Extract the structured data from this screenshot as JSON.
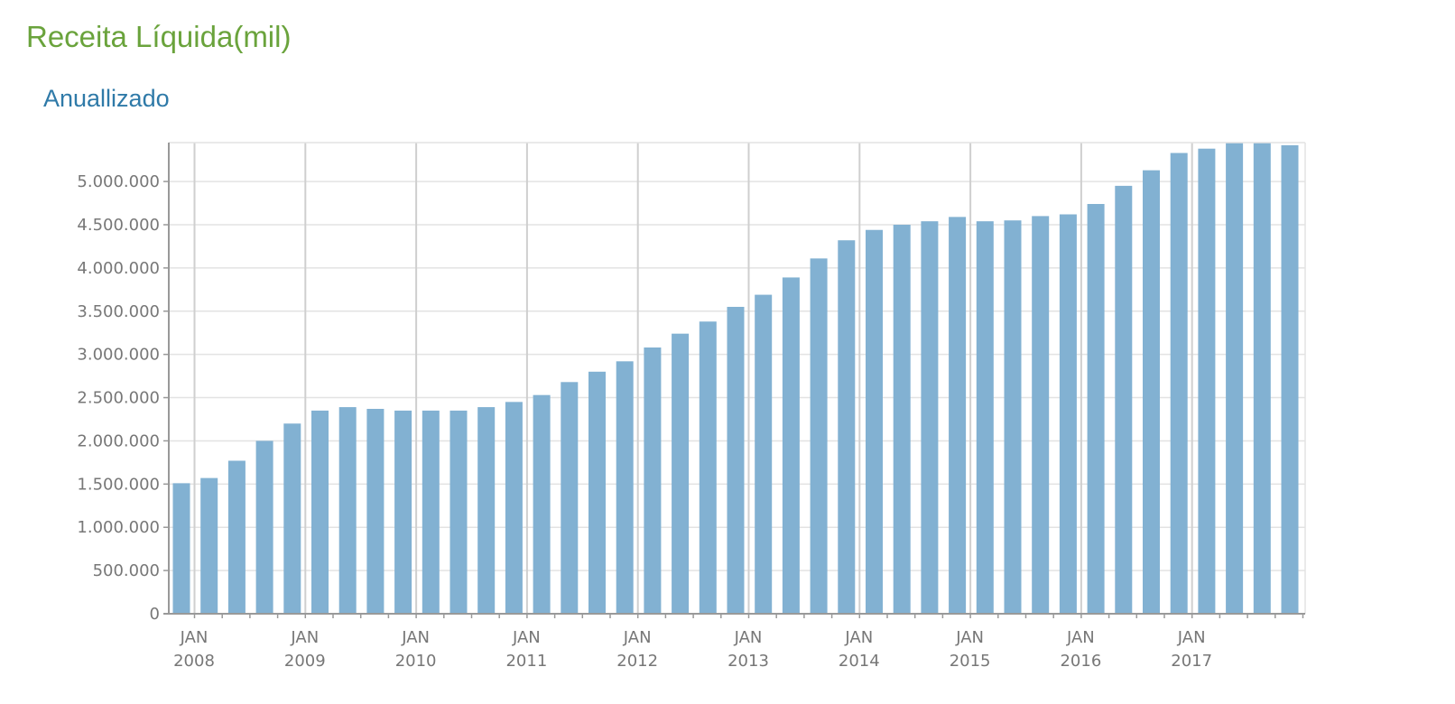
{
  "header": {
    "title": "Receita Líquida(mil)",
    "subtitle": "Anuallizado"
  },
  "chart_data": {
    "type": "bar",
    "title": "Receita Líquida(mil)",
    "subtitle": "Anuallizado",
    "xlabel": "",
    "ylabel": "",
    "ylim": [
      0,
      5450000
    ],
    "yticks": [
      0,
      500000,
      1000000,
      1500000,
      2000000,
      2500000,
      3000000,
      3500000,
      4000000,
      4500000,
      5000000
    ],
    "ytick_labels": [
      "0",
      "500.000",
      "1.000.000",
      "1.500.000",
      "2.000.000",
      "2.500.000",
      "3.000.000",
      "3.500.000",
      "4.000.000",
      "4.500.000",
      "5.000.000"
    ],
    "x_year_labels": [
      {
        "month": "JAN",
        "year": "2008"
      },
      {
        "month": "JAN",
        "year": "2009"
      },
      {
        "month": "JAN",
        "year": "2010"
      },
      {
        "month": "JAN",
        "year": "2011"
      },
      {
        "month": "JAN",
        "year": "2012"
      },
      {
        "month": "JAN",
        "year": "2013"
      },
      {
        "month": "JAN",
        "year": "2014"
      },
      {
        "month": "JAN",
        "year": "2015"
      },
      {
        "month": "JAN",
        "year": "2016"
      },
      {
        "month": "JAN",
        "year": "2017"
      }
    ],
    "periods_per_year": 4,
    "values": [
      1510000,
      1570000,
      1770000,
      2000000,
      2200000,
      2350000,
      2390000,
      2370000,
      2350000,
      2350000,
      2350000,
      2390000,
      2450000,
      2530000,
      2680000,
      2800000,
      2920000,
      3080000,
      3240000,
      3380000,
      3550000,
      3690000,
      3890000,
      4110000,
      4320000,
      4440000,
      4500000,
      4540000,
      4590000,
      4540000,
      4550000,
      4600000,
      4620000,
      4740000,
      4950000,
      5130000,
      5330000,
      5380000,
      5450000,
      5450000,
      5420000
    ],
    "bar_color": "#82b1d2",
    "grid": true,
    "legend": "none"
  }
}
